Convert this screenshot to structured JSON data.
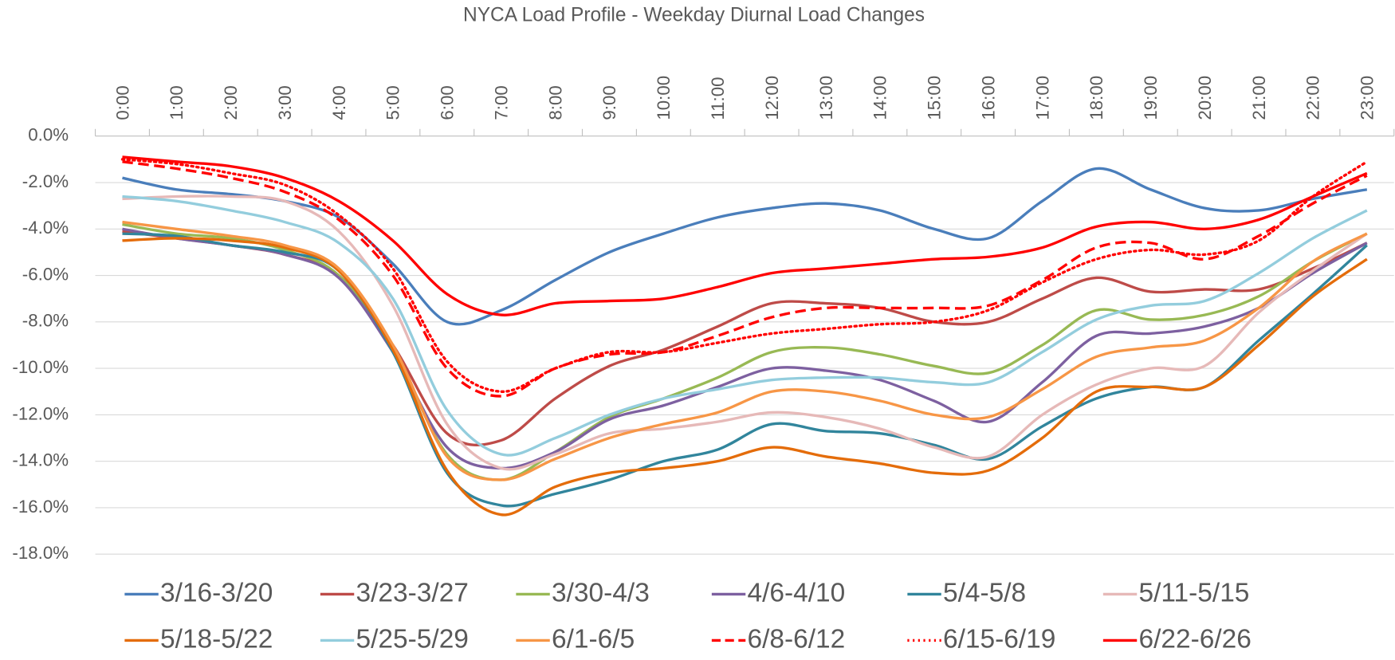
{
  "chart_data": {
    "type": "line",
    "title": "NYCA Load Profile - Weekday Diurnal Load Changes",
    "categories": [
      "0:00",
      "1:00",
      "2:00",
      "3:00",
      "4:00",
      "5:00",
      "6:00",
      "7:00",
      "8:00",
      "9:00",
      "10:00",
      "11:00",
      "12:00",
      "13:00",
      "14:00",
      "15:00",
      "16:00",
      "17:00",
      "18:00",
      "19:00",
      "20:00",
      "21:00",
      "22:00",
      "23:00"
    ],
    "ylim": [
      -18,
      0
    ],
    "yticks": [
      {
        "value": 0,
        "label": "0.0%"
      },
      {
        "value": -2,
        "label": "-2.0%"
      },
      {
        "value": -4,
        "label": "-4.0%"
      },
      {
        "value": -6,
        "label": "-6.0%"
      },
      {
        "value": -8,
        "label": "-8.0%"
      },
      {
        "value": -10,
        "label": "-10.0%"
      },
      {
        "value": -12,
        "label": "-12.0%"
      },
      {
        "value": -14,
        "label": "-14.0%"
      },
      {
        "value": -16,
        "label": "-16.0%"
      },
      {
        "value": -18,
        "label": "-18.0%"
      }
    ],
    "grid": true,
    "legend": "bottom",
    "series": [
      {
        "name": "3/16-3/20",
        "color": "#4a7ebb",
        "dash": "solid",
        "values": [
          -1.8,
          -2.3,
          -2.5,
          -2.8,
          -3.5,
          -5.5,
          -8.0,
          -7.5,
          -6.2,
          -5.0,
          -4.2,
          -3.5,
          -3.1,
          -2.9,
          -3.2,
          -4.0,
          -4.4,
          -2.8,
          -1.4,
          -2.3,
          -3.1,
          -3.2,
          -2.7,
          -2.3
        ]
      },
      {
        "name": "3/23-3/27",
        "color": "#be4b48",
        "dash": "solid",
        "values": [
          -4.1,
          -4.4,
          -4.7,
          -5.1,
          -6.0,
          -9.0,
          -12.8,
          -13.1,
          -11.3,
          -9.9,
          -9.2,
          -8.2,
          -7.2,
          -7.2,
          -7.4,
          -8.0,
          -8.0,
          -7.0,
          -6.1,
          -6.7,
          -6.6,
          -6.6,
          -5.7,
          -4.6
        ]
      },
      {
        "name": "3/30-4/3",
        "color": "#98b954",
        "dash": "solid",
        "values": [
          -3.8,
          -4.2,
          -4.4,
          -4.9,
          -6.0,
          -9.2,
          -13.7,
          -14.8,
          -13.6,
          -12.1,
          -11.3,
          -10.4,
          -9.3,
          -9.1,
          -9.4,
          -9.9,
          -10.2,
          -9.0,
          -7.5,
          -7.9,
          -7.7,
          -6.9,
          -5.4,
          -4.2
        ]
      },
      {
        "name": "4/6-4/10",
        "color": "#7d60a0",
        "dash": "solid",
        "values": [
          -4.0,
          -4.4,
          -4.7,
          -5.1,
          -6.1,
          -9.3,
          -13.4,
          -14.3,
          -13.6,
          -12.2,
          -11.6,
          -10.8,
          -10.0,
          -10.1,
          -10.5,
          -11.4,
          -12.3,
          -10.6,
          -8.6,
          -8.5,
          -8.2,
          -7.4,
          -5.9,
          -4.6
        ]
      },
      {
        "name": "5/4-5/8",
        "color": "#31859c",
        "dash": "solid",
        "values": [
          -4.2,
          -4.3,
          -4.7,
          -5.0,
          -5.8,
          -9.3,
          -14.5,
          -15.9,
          -15.4,
          -14.8,
          -14.0,
          -13.5,
          -12.4,
          -12.7,
          -12.8,
          -13.3,
          -13.9,
          -12.5,
          -11.3,
          -10.8,
          -10.8,
          -8.8,
          -6.8,
          -4.7
        ]
      },
      {
        "name": "5/11-5/15",
        "color": "#e6b9b8",
        "dash": "solid",
        "values": [
          -2.7,
          -2.6,
          -2.6,
          -2.8,
          -4.1,
          -7.3,
          -12.4,
          -14.3,
          -13.7,
          -12.8,
          -12.6,
          -12.3,
          -11.9,
          -12.1,
          -12.6,
          -13.4,
          -13.8,
          -12.0,
          -10.7,
          -10.0,
          -9.9,
          -7.6,
          -5.8,
          -4.2
        ]
      },
      {
        "name": "5/18-5/22",
        "color": "#e46c0a",
        "dash": "solid",
        "values": [
          -4.5,
          -4.4,
          -4.5,
          -4.8,
          -5.8,
          -9.2,
          -14.4,
          -16.3,
          -15.1,
          -14.5,
          -14.3,
          -14.0,
          -13.4,
          -13.8,
          -14.1,
          -14.5,
          -14.4,
          -13.0,
          -11.0,
          -10.8,
          -10.8,
          -9.0,
          -6.9,
          -5.3
        ]
      },
      {
        "name": "5/25-5/29",
        "color": "#93cddd",
        "dash": "solid",
        "values": [
          -2.6,
          -2.8,
          -3.2,
          -3.7,
          -4.6,
          -7.0,
          -11.8,
          -13.7,
          -13.0,
          -12.0,
          -11.3,
          -10.9,
          -10.5,
          -10.4,
          -10.4,
          -10.6,
          -10.6,
          -9.3,
          -7.9,
          -7.3,
          -7.1,
          -5.9,
          -4.4,
          -3.2
        ]
      },
      {
        "name": "6/1-6/5",
        "color": "#f79646",
        "dash": "solid",
        "values": [
          -3.7,
          -4.0,
          -4.3,
          -4.7,
          -5.7,
          -9.0,
          -13.8,
          -14.8,
          -13.9,
          -13.0,
          -12.4,
          -11.9,
          -11.0,
          -11.0,
          -11.4,
          -12.0,
          -12.1,
          -10.9,
          -9.5,
          -9.1,
          -8.8,
          -7.4,
          -5.4,
          -4.2
        ]
      },
      {
        "name": "6/8-6/12",
        "color": "#ff0000",
        "dash": "dashed",
        "values": [
          -1.1,
          -1.4,
          -1.8,
          -2.4,
          -3.6,
          -6.0,
          -10.0,
          -11.2,
          -10.0,
          -9.4,
          -9.3,
          -8.6,
          -7.8,
          -7.4,
          -7.4,
          -7.4,
          -7.3,
          -6.2,
          -4.8,
          -4.6,
          -5.3,
          -4.3,
          -2.9,
          -1.7
        ]
      },
      {
        "name": "6/15-6/19",
        "color": "#ff0000",
        "dash": "dotted",
        "values": [
          -1.0,
          -1.2,
          -1.6,
          -2.1,
          -3.4,
          -5.7,
          -9.7,
          -11.0,
          -10.0,
          -9.3,
          -9.3,
          -8.9,
          -8.5,
          -8.3,
          -8.1,
          -8.0,
          -7.5,
          -6.3,
          -5.3,
          -4.9,
          -5.1,
          -4.5,
          -2.6,
          -1.1
        ]
      },
      {
        "name": "6/22-6/26",
        "color": "#ff0000",
        "dash": "solid",
        "values": [
          -0.9,
          -1.1,
          -1.3,
          -1.8,
          -2.8,
          -4.5,
          -6.8,
          -7.7,
          -7.2,
          -7.1,
          -7.0,
          -6.5,
          -5.9,
          -5.7,
          -5.5,
          -5.3,
          -5.2,
          -4.8,
          -3.9,
          -3.7,
          -4.0,
          -3.6,
          -2.6,
          -1.6
        ]
      }
    ]
  }
}
